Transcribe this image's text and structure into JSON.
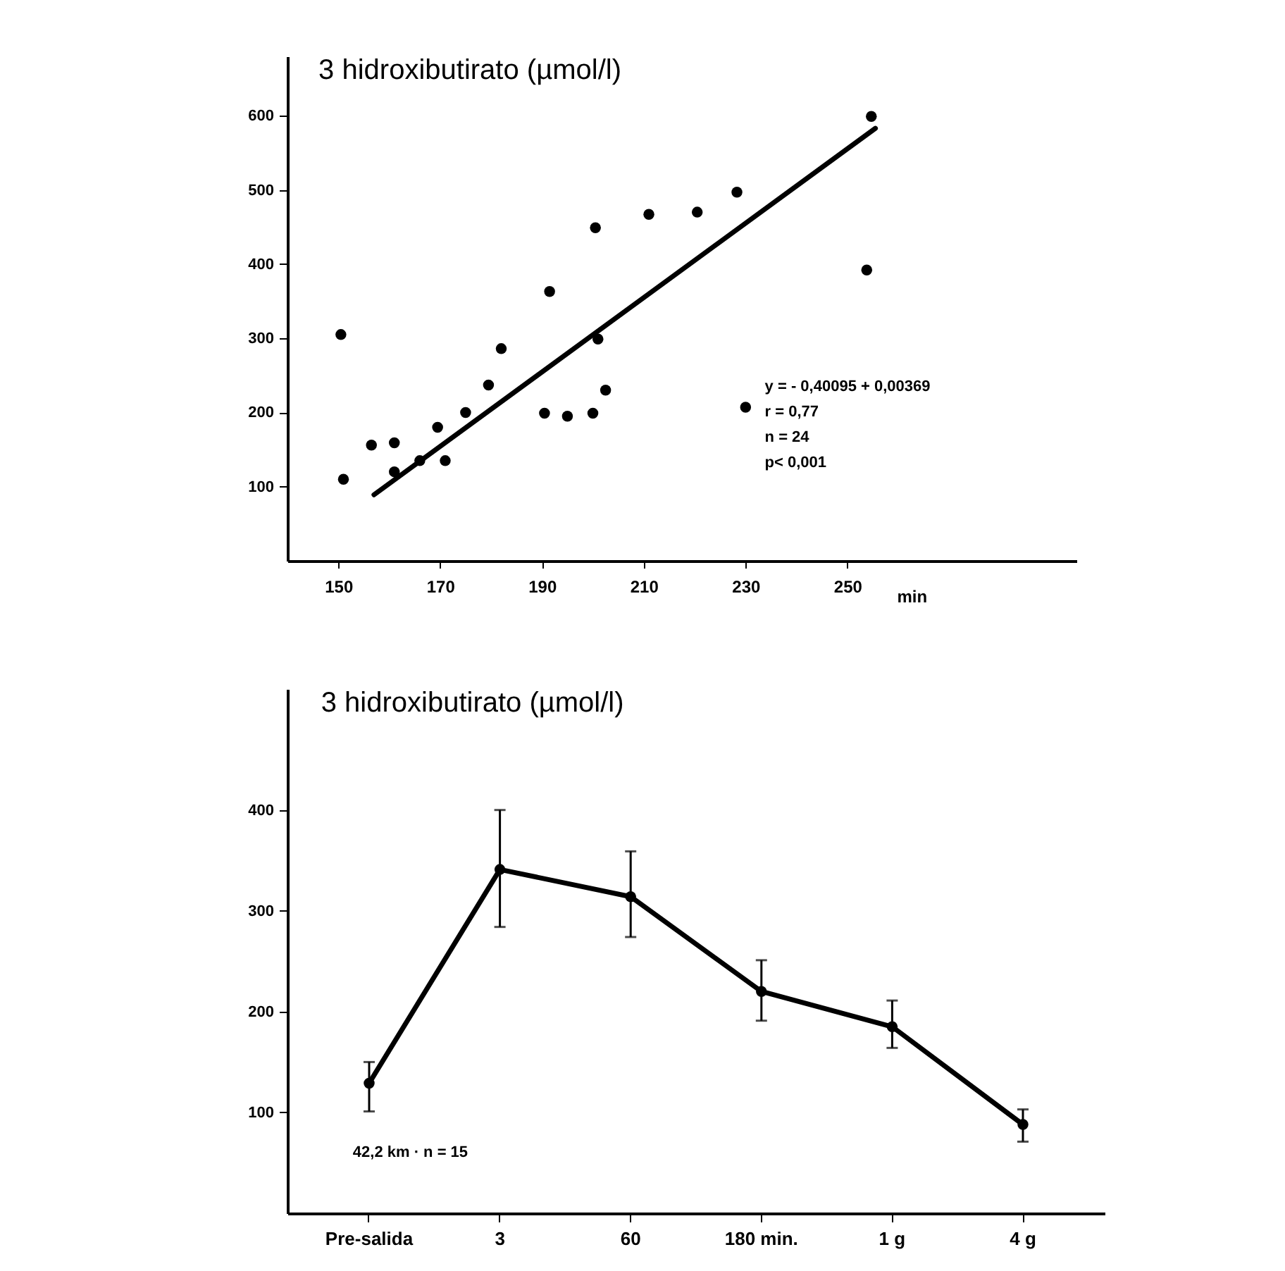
{
  "chart_data": [
    {
      "type": "scatter",
      "title": "3 hidroxibutirato (µmol/l)",
      "xlabel": "min",
      "xlim": [
        140,
        295
      ],
      "ylim": [
        0,
        680
      ],
      "xticks": [
        150,
        170,
        190,
        210,
        230,
        250
      ],
      "yticks": [
        100,
        200,
        300,
        400,
        500,
        600
      ],
      "grid": false,
      "marker": "circle",
      "series": [
        {
          "color": "#000000",
          "x": [
            150.5,
            151,
            156.5,
            161,
            161,
            166,
            169.5,
            171,
            175,
            179.5,
            182,
            190.5,
            191.5,
            195,
            200,
            200.5,
            201,
            202.5,
            211,
            220.5,
            228.3,
            230,
            253.8,
            254.7
          ],
          "values": [
            305,
            110,
            156,
            159,
            120,
            135,
            180,
            135,
            200,
            237,
            286,
            199,
            363,
            195,
            199,
            449,
            299,
            230,
            467,
            470,
            497,
            207,
            392,
            599
          ]
        },
        {
          "type": "line",
          "marker": "none",
          "color": "#000000",
          "x": [
            157,
            255.5
          ],
          "values": [
            89,
            583
          ]
        }
      ],
      "annotations": [
        "y = - 0,40095 + 0,00369",
        "r = 0,77",
        "n = 24",
        "p< 0,001"
      ]
    },
    {
      "type": "line",
      "title": "3 hidroxibutirato (µmol/l)",
      "categories": [
        "Pre-salida",
        "3",
        "60",
        "180 min.",
        "1 g",
        "4 g"
      ],
      "ylim": [
        0,
        520
      ],
      "yticks": [
        100,
        200,
        300,
        400
      ],
      "grid": false,
      "marker": "circle",
      "line_style": "solid",
      "series": [
        {
          "color": "#000000",
          "values": [
            129,
            341,
            314,
            220,
            185,
            88
          ],
          "errors": [
            [
              101,
              150
            ],
            [
              284,
              400
            ],
            [
              274,
              359
            ],
            [
              191,
              251
            ],
            [
              164,
              211
            ],
            [
              71,
              103
            ]
          ]
        }
      ],
      "annotations": [
        "42,2 km ·  n = 15"
      ]
    }
  ]
}
